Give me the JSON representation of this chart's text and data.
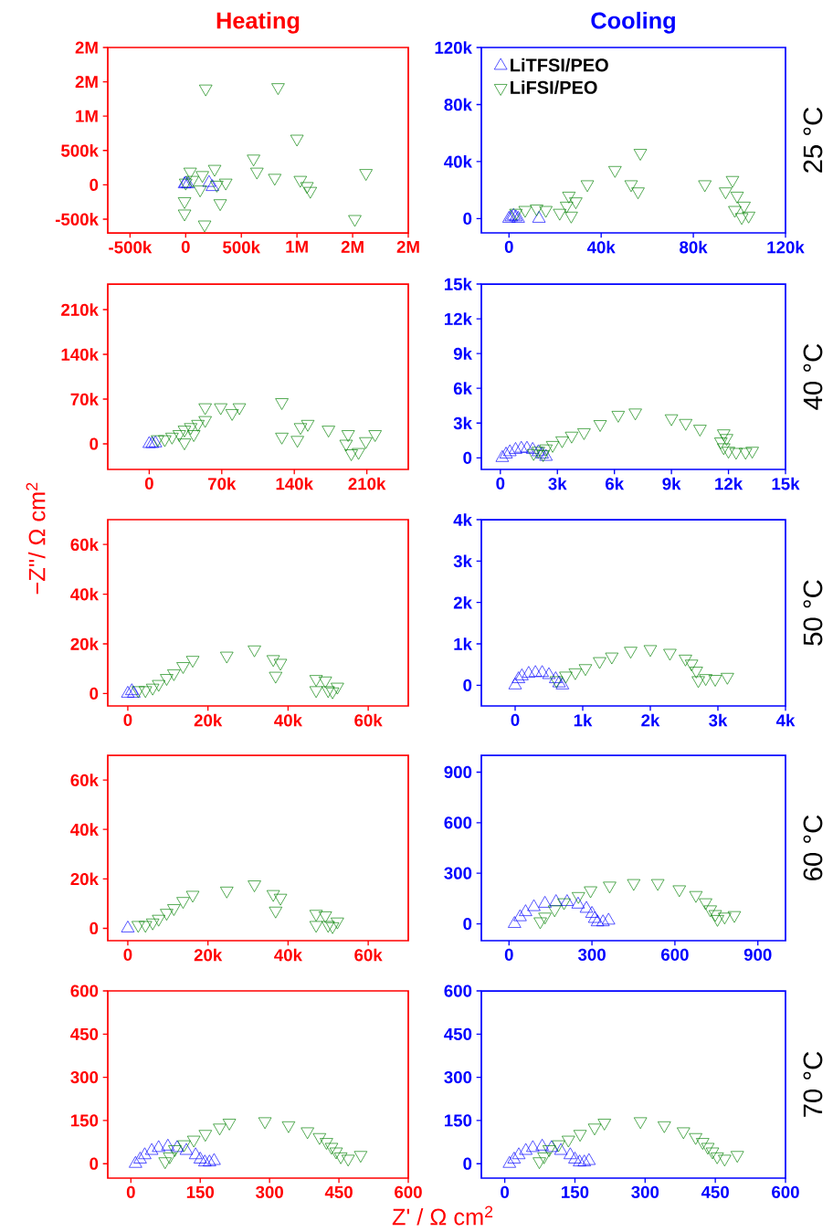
{
  "chart_data": [
    {
      "type": "scatter",
      "title": "Heating",
      "xlim": [
        -700000,
        2000000
      ],
      "ylim": [
        -700000,
        2000000
      ],
      "xticks": [
        {
          "value": -500000,
          "label": "-500k"
        },
        0,
        {
          "value": 500000,
          "label": "500k"
        },
        {
          "value": 1000000,
          "label": "1M"
        },
        {
          "value": 1500000,
          "label": "2M"
        },
        {
          "value": 2000000,
          "label": "2M"
        }
      ],
      "yticks": [
        {
          "value": -500000,
          "label": "-500k"
        },
        0,
        {
          "value": 500000,
          "label": "500k"
        },
        {
          "value": 1000000,
          "label": "1M"
        },
        {
          "value": 1500000,
          "label": "2M"
        },
        {
          "value": 2000000,
          "label": "2M"
        }
      ],
      "series": [
        {
          "color": "#0000ff",
          "marker": "triangle",
          "x": [
            -10000,
            0,
            20000,
            210000,
            240000
          ],
          "values": [
            10000,
            20000,
            10000,
            30000,
            -30000
          ]
        },
        {
          "color": "#008000",
          "marker": "triangle-down",
          "x": [
            180000,
            830000,
            1000000,
            610000,
            640000,
            800000,
            1620000,
            1520000,
            1030000,
            1090000,
            1120000,
            310000,
            -10000,
            -10000,
            170000,
            260000,
            150000,
            40000,
            60000,
            130000,
            0,
            360000,
            280000
          ],
          "values": [
            1400000,
            1420000,
            670000,
            380000,
            190000,
            100000,
            170000,
            -500000,
            70000,
            -20000,
            -90000,
            -270000,
            -240000,
            -420000,
            -580000,
            230000,
            140000,
            190000,
            70000,
            -70000,
            30000,
            30000,
            0
          ]
        }
      ]
    },
    {
      "type": "scatter",
      "title": "Cooling",
      "legend": "top left",
      "annotations": [
        "25 °C"
      ],
      "xlim": [
        -12000,
        120000
      ],
      "ylim": [
        -10000,
        120000
      ],
      "xticks": [
        0,
        {
          "value": 40000,
          "label": "40k"
        },
        {
          "value": 80000,
          "label": "80k"
        },
        {
          "value": 120000,
          "label": "120k"
        }
      ],
      "yticks": [
        0,
        {
          "value": 40000,
          "label": "40k"
        },
        {
          "value": 80000,
          "label": "80k"
        },
        {
          "value": 120000,
          "label": "120k"
        }
      ],
      "series": [
        {
          "name": "LiTFSI/PEO",
          "color": "#0000ff",
          "marker": "triangle",
          "x": [
            0,
            1000,
            2000,
            3000,
            4000,
            13000
          ],
          "values": [
            0,
            1000,
            2000,
            1000,
            0,
            0
          ]
        },
        {
          "name": "LiFSI/PEO",
          "color": "#008000",
          "marker": "triangle-down",
          "x": [
            57000,
            46000,
            53000,
            56000,
            34000,
            29000,
            26000,
            25000,
            27000,
            22000,
            16000,
            12000,
            7000,
            3000,
            85000,
            97000,
            94000,
            98000,
            99000,
            102000,
            104000,
            101000
          ],
          "values": [
            46000,
            34000,
            24000,
            19000,
            24000,
            12000,
            16000,
            9000,
            2000,
            4000,
            6000,
            7000,
            6000,
            4000,
            24000,
            27000,
            19000,
            6000,
            16000,
            9000,
            2000,
            1000
          ]
        }
      ]
    },
    {
      "type": "scatter",
      "xlim": [
        -40000,
        250000
      ],
      "ylim": [
        -40000,
        250000
      ],
      "xticks": [
        0,
        {
          "value": 70000,
          "label": "70k"
        },
        {
          "value": 140000,
          "label": "140k"
        },
        {
          "value": 210000,
          "label": "210k"
        }
      ],
      "yticks": [
        0,
        {
          "value": 70000,
          "label": "70k"
        },
        {
          "value": 140000,
          "label": "140k"
        },
        {
          "value": 210000,
          "label": "210k"
        }
      ],
      "series": [
        {
          "color": "#0000ff",
          "marker": "triangle",
          "x": [
            0,
            3000,
            6000
          ],
          "values": [
            0,
            0,
            1000
          ]
        },
        {
          "color": "#008000",
          "marker": "triangle-down",
          "x": [
            54000,
            69000,
            87000,
            80000,
            128000,
            128000,
            143000,
            146000,
            153000,
            173000,
            192000,
            190000,
            195000,
            202000,
            209000,
            218000,
            54000,
            47000,
            40000,
            34000,
            29000,
            22000,
            15000,
            8000,
            43000,
            34000
          ],
          "values": [
            57000,
            57000,
            57000,
            48000,
            65000,
            11000,
            6000,
            26000,
            31000,
            22000,
            15000,
            0,
            -15000,
            -13000,
            4000,
            15000,
            37000,
            31000,
            26000,
            22000,
            15000,
            11000,
            7000,
            7000,
            15000,
            2000
          ]
        }
      ]
    },
    {
      "type": "scatter",
      "annotations": [
        "40 °C"
      ],
      "xlim": [
        -1000,
        15000
      ],
      "ylim": [
        -1000,
        15000
      ],
      "xticks": [
        0,
        {
          "value": 3000,
          "label": "3k"
        },
        {
          "value": 6000,
          "label": "6k"
        },
        {
          "value": 9000,
          "label": "9k"
        },
        {
          "value": 12000,
          "label": "12k"
        },
        {
          "value": 15000,
          "label": "15k"
        }
      ],
      "yticks": [
        0,
        {
          "value": 3000,
          "label": "3k"
        },
        {
          "value": 6000,
          "label": "6k"
        },
        {
          "value": 9000,
          "label": "9k"
        },
        {
          "value": 12000,
          "label": "12k"
        },
        {
          "value": 15000,
          "label": "15k"
        }
      ],
      "series": [
        {
          "color": "#0000ff",
          "marker": "triangle",
          "x": [
            100,
            300,
            500,
            800,
            1100,
            1400,
            1700,
            2000,
            2200,
            2400
          ],
          "values": [
            0,
            300,
            500,
            700,
            800,
            800,
            700,
            500,
            300,
            100
          ]
        },
        {
          "color": "#008000",
          "marker": "triangle-down",
          "x": [
            7100,
            6200,
            5250,
            4400,
            3750,
            3250,
            2750,
            2400,
            2000,
            1750,
            9000,
            9750,
            10500,
            11750,
            11900,
            11600,
            11750,
            12000,
            12400,
            12900,
            13250,
            2250
          ],
          "values": [
            3900,
            3700,
            2900,
            2200,
            1900,
            1500,
            1100,
            800,
            600,
            400,
            3400,
            3000,
            2500,
            2100,
            1700,
            1400,
            900,
            600,
            500,
            500,
            600,
            300
          ]
        }
      ]
    },
    {
      "type": "scatter",
      "ylabel": "−Z''/ Ω cm$^{2}$",
      "xlim": [
        -5000,
        70000
      ],
      "ylim": [
        -5000,
        70000
      ],
      "xticks": [
        0,
        {
          "value": 20000,
          "label": "20k"
        },
        {
          "value": 40000,
          "label": "40k"
        },
        {
          "value": 60000,
          "label": "60k"
        }
      ],
      "yticks": [
        0,
        {
          "value": 20000,
          "label": "20k"
        },
        {
          "value": 40000,
          "label": "40k"
        },
        {
          "value": 60000,
          "label": "60k"
        }
      ],
      "series": [
        {
          "color": "#0000ff",
          "marker": "triangle",
          "x": [
            0,
            1000,
            1500
          ],
          "values": [
            0,
            1000,
            0
          ]
        },
        {
          "color": "#008000",
          "marker": "triangle-down",
          "x": [
            31600,
            24700,
            16200,
            13800,
            11500,
            9700,
            7700,
            6200,
            4400,
            2600,
            36300,
            38100,
            36900,
            47000,
            49300,
            47000,
            50000,
            52300,
            51100
          ],
          "values": [
            17700,
            15200,
            13500,
            11000,
            8100,
            6200,
            3800,
            2300,
            1300,
            1300,
            13800,
            12300,
            7100,
            5800,
            5200,
            1300,
            1300,
            2700,
            800
          ]
        }
      ]
    },
    {
      "type": "scatter",
      "annotations": [
        "50 °C"
      ],
      "xlim": [
        -500,
        4000
      ],
      "ylim": [
        -500,
        4000
      ],
      "xticks": [
        0,
        {
          "value": 1000,
          "label": "1k"
        },
        {
          "value": 2000,
          "label": "2k"
        },
        {
          "value": 3000,
          "label": "3k"
        },
        {
          "value": 4000,
          "label": "4k"
        }
      ],
      "yticks": [
        0,
        {
          "value": 1000,
          "label": "1k"
        },
        {
          "value": 2000,
          "label": "2k"
        },
        {
          "value": 3000,
          "label": "3k"
        },
        {
          "value": 4000,
          "label": "4k"
        }
      ],
      "series": [
        {
          "color": "#0000ff",
          "marker": "triangle",
          "x": [
            0,
            50,
            100,
            200,
            300,
            400,
            500,
            600,
            650,
            700
          ],
          "values": [
            0,
            150,
            220,
            280,
            300,
            300,
            250,
            150,
            50,
            0
          ]
        },
        {
          "color": "#008000",
          "marker": "triangle-down",
          "x": [
            2000,
            1710,
            1430,
            1250,
            1040,
            890,
            750,
            610,
            2290,
            2520,
            2610,
            2680,
            2820,
            2960,
            3140,
            2710
          ],
          "values": [
            870,
            830,
            690,
            580,
            410,
            310,
            230,
            120,
            780,
            640,
            520,
            350,
            170,
            150,
            200,
            120
          ]
        }
      ]
    },
    {
      "type": "scatter",
      "xlim": [
        -5000,
        70000
      ],
      "ylim": [
        -5000,
        70000
      ],
      "xticks": [
        0,
        {
          "value": 20000,
          "label": "20k"
        },
        {
          "value": 40000,
          "label": "40k"
        },
        {
          "value": 60000,
          "label": "60k"
        }
      ],
      "yticks": [
        0,
        {
          "value": 20000,
          "label": "20k"
        },
        {
          "value": 40000,
          "label": "40k"
        },
        {
          "value": 60000,
          "label": "60k"
        }
      ],
      "series": [
        {
          "color": "#0000ff",
          "marker": "triangle",
          "x": [
            0
          ],
          "values": [
            0
          ]
        },
        {
          "color": "#008000",
          "marker": "triangle-down",
          "x": [
            31600,
            24700,
            16200,
            13800,
            11500,
            9700,
            7700,
            6200,
            4400,
            2600,
            36300,
            38100,
            36900,
            47000,
            49300,
            47000,
            50000,
            52300,
            51100
          ],
          "values": [
            17700,
            15200,
            13500,
            11000,
            8100,
            6200,
            3800,
            2300,
            1300,
            1300,
            13800,
            12300,
            7100,
            5800,
            5200,
            1300,
            1300,
            2700,
            800
          ]
        }
      ]
    },
    {
      "type": "scatter",
      "annotations": [
        "60 °C"
      ],
      "xlim": [
        -100,
        1000
      ],
      "ylim": [
        -100,
        1000
      ],
      "xticks": [
        0,
        300,
        600,
        900
      ],
      "yticks": [
        0,
        300,
        600,
        900
      ],
      "series": [
        {
          "color": "#0000ff",
          "marker": "triangle",
          "x": [
            20,
            40,
            60,
            90,
            130,
            170,
            210,
            250,
            280,
            300,
            310,
            320,
            340,
            360
          ],
          "values": [
            0,
            40,
            70,
            100,
            120,
            130,
            130,
            115,
            90,
            60,
            30,
            10,
            10,
            20
          ]
        },
        {
          "color": "#008000",
          "marker": "triangle-down",
          "x": [
            451,
            538,
            616,
            676,
            711,
            728,
            746,
            780,
            815,
            364,
            295,
            251,
            199,
            165,
            130,
            113,
            754
          ],
          "values": [
            241,
            241,
            204,
            170,
            127,
            85,
            57,
            42,
            51,
            226,
            198,
            164,
            127,
            85,
            42,
            14,
            28
          ]
        }
      ]
    },
    {
      "type": "scatter",
      "xlabel": "Z' / Ω cm$^{2}$",
      "xlim": [
        -50,
        600
      ],
      "ylim": [
        -50,
        600
      ],
      "xticks": [
        0,
        150,
        300,
        450,
        600
      ],
      "yticks": [
        0,
        150,
        300,
        450,
        600
      ],
      "series": [
        {
          "color": "#0000ff",
          "marker": "triangle",
          "x": [
            10,
            20,
            30,
            45,
            60,
            80,
            100,
            120,
            140,
            150,
            160,
            170,
            180
          ],
          "values": [
            0,
            15,
            30,
            45,
            55,
            60,
            55,
            45,
            30,
            15,
            5,
            5,
            10
          ]
        },
        {
          "color": "#008000",
          "marker": "triangle-down",
          "x": [
            213,
            290,
            341,
            382,
            408,
            423,
            434,
            444,
            454,
            497,
            470,
            192,
            161,
            136,
            115,
            95,
            84,
            74
          ],
          "values": [
            142,
            147,
            133,
            112,
            92,
            75,
            58,
            42,
            25,
            30,
            17,
            125,
            103,
            83,
            67,
            50,
            25,
            8
          ]
        }
      ]
    },
    {
      "type": "scatter",
      "annotations": [
        "70 °C"
      ],
      "xlim": [
        -50,
        600
      ],
      "ylim": [
        -50,
        600
      ],
      "xticks": [
        0,
        150,
        300,
        450,
        600
      ],
      "yticks": [
        0,
        150,
        300,
        450,
        600
      ],
      "series": [
        {
          "color": "#0000ff",
          "marker": "triangle",
          "x": [
            10,
            20,
            30,
            45,
            60,
            80,
            100,
            120,
            140,
            150,
            160,
            170,
            180
          ],
          "values": [
            0,
            15,
            30,
            45,
            55,
            60,
            55,
            45,
            30,
            15,
            5,
            5,
            10
          ]
        },
        {
          "color": "#008000",
          "marker": "triangle-down",
          "x": [
            213,
            290,
            341,
            382,
            408,
            423,
            434,
            444,
            454,
            497,
            470,
            192,
            161,
            136,
            115,
            95,
            84,
            74
          ],
          "values": [
            142,
            147,
            133,
            112,
            92,
            75,
            58,
            42,
            25,
            30,
            17,
            125,
            103,
            83,
            67,
            50,
            25,
            8
          ]
        }
      ]
    }
  ]
}
